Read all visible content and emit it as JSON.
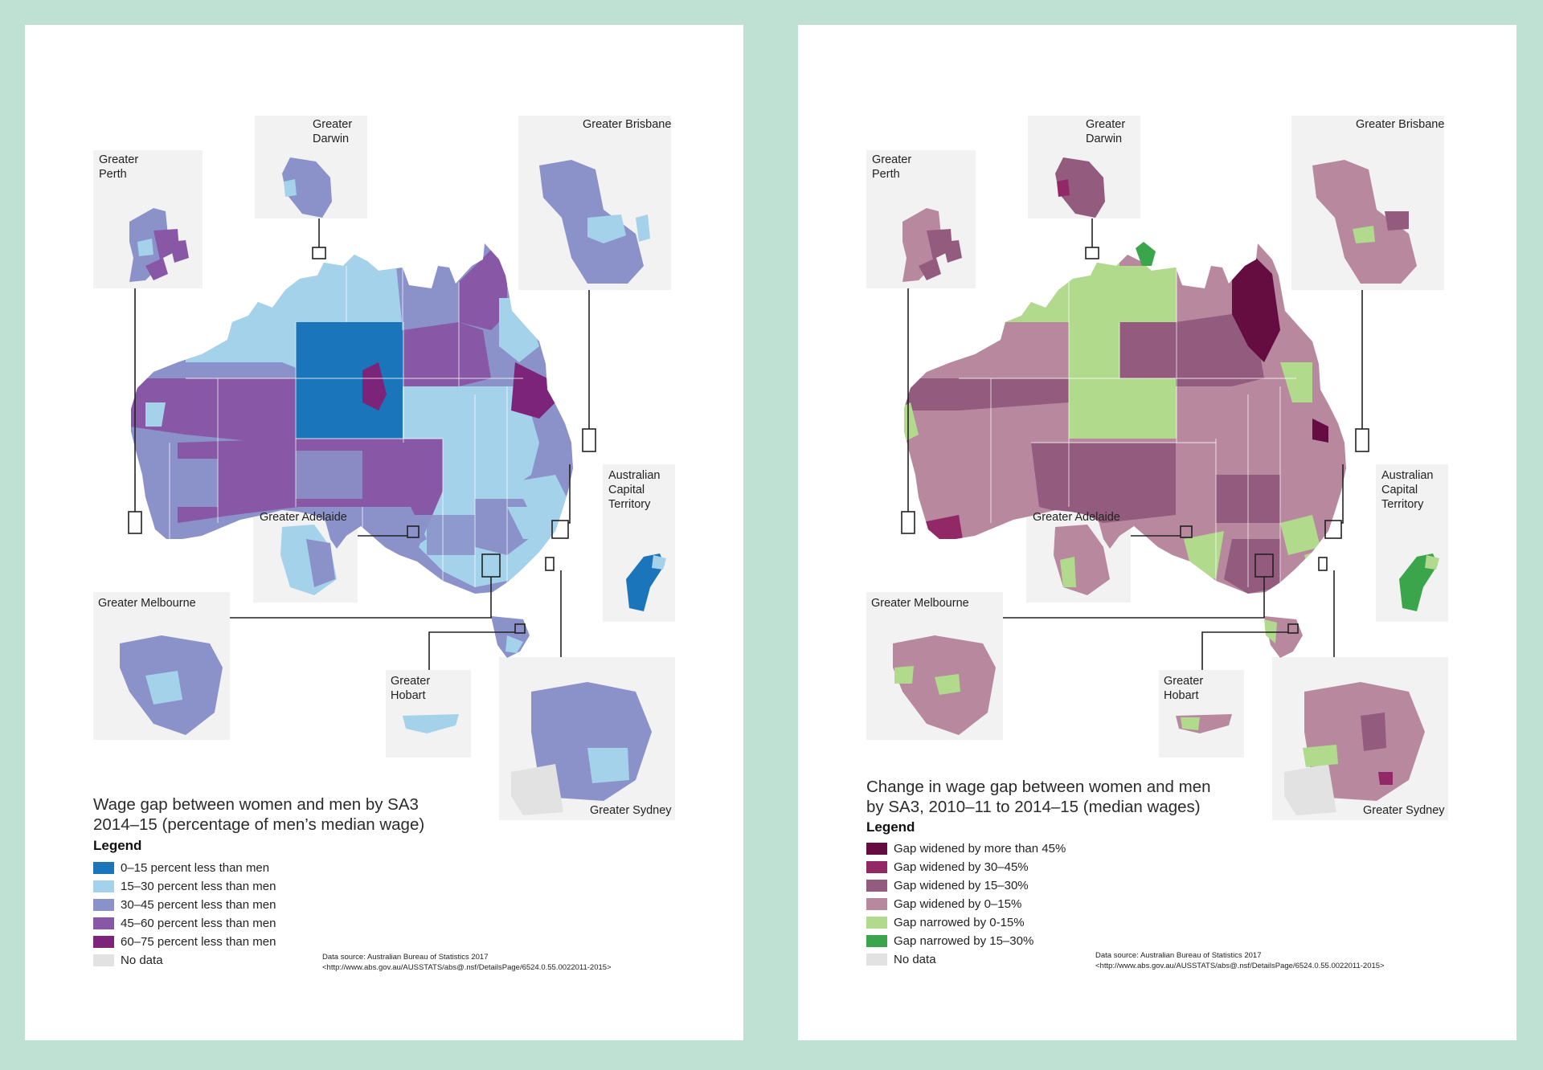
{
  "left_panel": {
    "title_line1": "Wage gap between women and men by SA3",
    "title_line2": "2014–15 (percentage of men’s median wage)",
    "legend_heading": "Legend",
    "legend": [
      {
        "label": "0–15 percent less than men",
        "color": "#1b75bb"
      },
      {
        "label": "15–30 percent less than men",
        "color": "#a4d2ea"
      },
      {
        "label": "30–45 percent less than men",
        "color": "#8b91c9"
      },
      {
        "label": "45–60 percent less than men",
        "color": "#8857a6"
      },
      {
        "label": "60–75 percent less than men",
        "color": "#7c2479"
      },
      {
        "label": "No data",
        "color": "#e2e2e2"
      }
    ],
    "insets": {
      "perth": [
        "Greater",
        "Perth"
      ],
      "darwin": [
        "Greater",
        "Darwin"
      ],
      "brisbane": "Greater Brisbane",
      "adelaide": "Greater Adelaide",
      "act": [
        "Australian",
        "Capital",
        "Territory"
      ],
      "melbourne": "Greater Melbourne",
      "hobart": [
        "Greater",
        "Hobart"
      ],
      "sydney": "Greater Sydney"
    },
    "source_line1": "Data source: Australian Bureau of Statistics 2017",
    "source_line2": "<http://www.abs.gov.au/AUSSTATS/abs@.nsf/DetailsPage/6524.0.55.0022011-2015>"
  },
  "right_panel": {
    "title_line1": "Change in wage gap between women and men",
    "title_line2": "by SA3, 2010–11 to 2014–15 (median wages)",
    "legend_heading": "Legend",
    "legend": [
      {
        "label": "Gap widened by more than 45%",
        "color": "#650d40"
      },
      {
        "label": "Gap widened by 30–45%",
        "color": "#922865"
      },
      {
        "label": "Gap widened by 15–30%",
        "color": "#935b7e"
      },
      {
        "label": "Gap widened by 0–15%",
        "color": "#b8889f"
      },
      {
        "label": "Gap narrowed by 0-15%",
        "color": "#b2da8c"
      },
      {
        "label": "Gap narrowed by 15–30%",
        "color": "#3aa54b"
      },
      {
        "label": "No data",
        "color": "#e2e2e2"
      }
    ],
    "insets": {
      "perth": [
        "Greater",
        "Perth"
      ],
      "darwin": [
        "Greater",
        "Darwin"
      ],
      "brisbane": "Greater Brisbane",
      "adelaide": "Greater Adelaide",
      "act": [
        "Australian",
        "Capital",
        "Territory"
      ],
      "melbourne": "Greater Melbourne",
      "hobart": [
        "Greater",
        "Hobart"
      ],
      "sydney": "Greater Sydney"
    },
    "source_line1": "Data source: Australian Bureau of Statistics 2017",
    "source_line2": "<http://www.abs.gov.au/AUSSTATS/abs@.nsf/DetailsPage/6524.0.55.0022011-2015>"
  }
}
